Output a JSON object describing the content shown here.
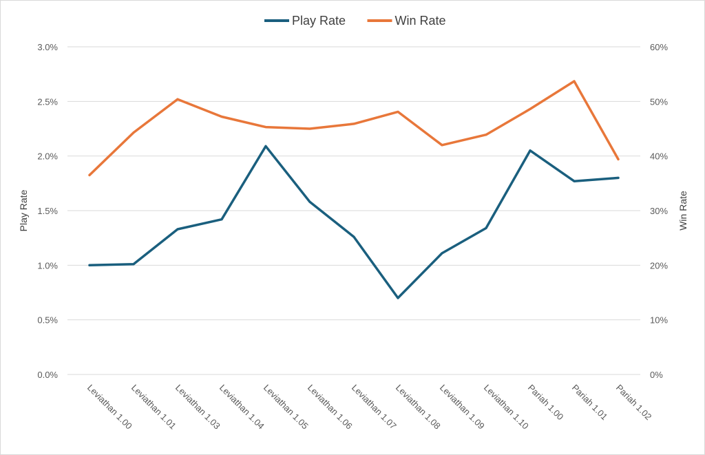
{
  "chart_data": {
    "type": "line",
    "title": "",
    "categories": [
      "Leviathan 1.00",
      "Leviathan 1.01",
      "Leviathan 1.03",
      "Leviathan 1.04",
      "Leviathan 1.05",
      "Leviathan 1.06",
      "Leviathan 1.07",
      "Leviathan 1.08",
      "Leviathan 1.09",
      "Leviathan 1.10",
      "Pariah 1.00",
      "Pariah 1.01",
      "Pariah 1.02"
    ],
    "series": [
      {
        "name": "Play Rate",
        "axis": "left",
        "color": "#1a5f7e",
        "values": [
          1.0,
          1.01,
          1.33,
          1.42,
          2.09,
          1.58,
          1.26,
          0.7,
          1.11,
          1.34,
          2.05,
          1.77,
          1.8
        ]
      },
      {
        "name": "Win Rate",
        "axis": "right",
        "color": "#e8773a",
        "values": [
          36.5,
          44.3,
          50.4,
          47.2,
          45.3,
          45.0,
          45.9,
          48.1,
          42.0,
          43.9,
          48.6,
          53.7,
          39.4
        ]
      }
    ],
    "y_left": {
      "label": "Play Rate",
      "range": [
        0,
        3.0
      ],
      "ticks": [
        "0.0%",
        "0.5%",
        "1.0%",
        "1.5%",
        "2.0%",
        "2.5%",
        "3.0%"
      ]
    },
    "y_right": {
      "label": "Win Rate",
      "range": [
        0,
        60
      ],
      "ticks": [
        "0%",
        "10%",
        "20%",
        "30%",
        "40%",
        "50%",
        "60%"
      ]
    },
    "grid": true,
    "legend_position": "top-center"
  }
}
